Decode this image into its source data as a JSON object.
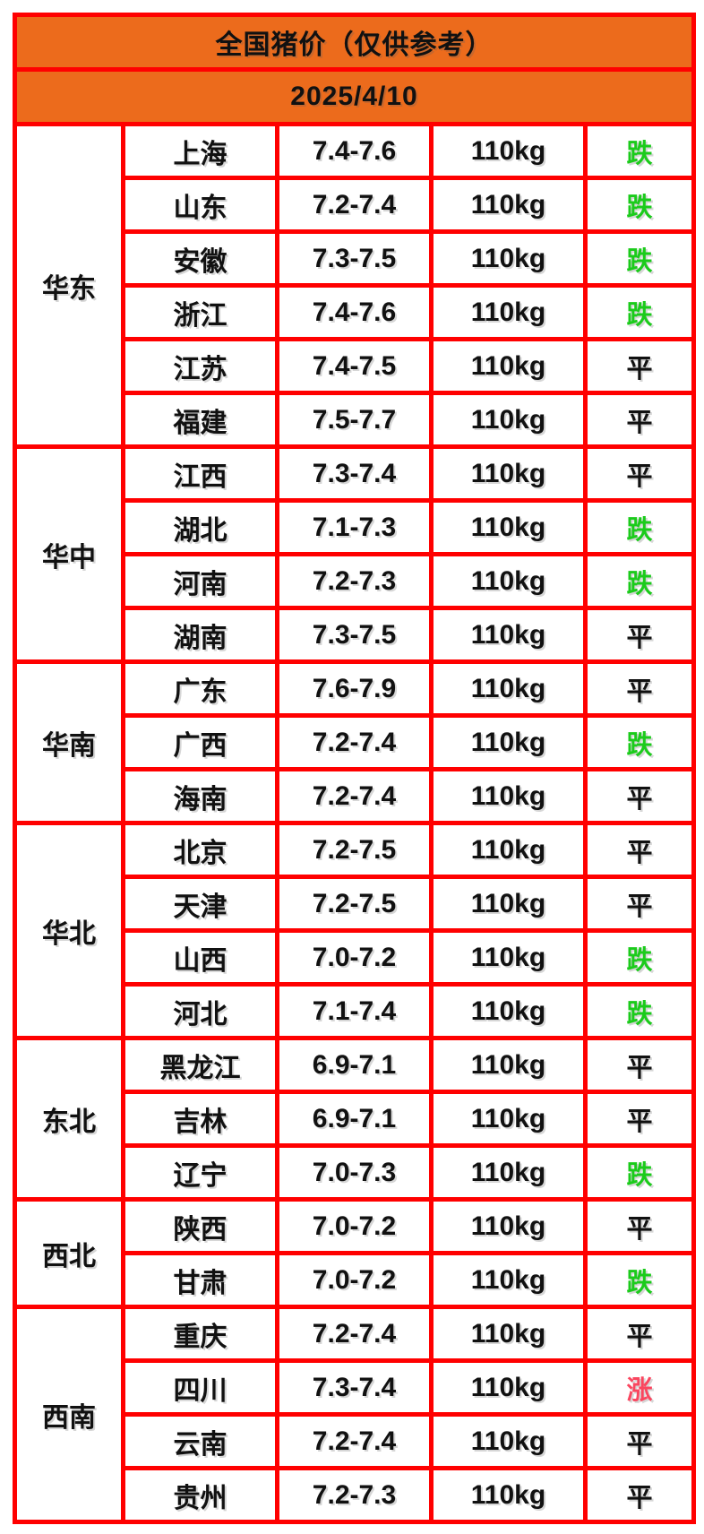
{
  "header": {
    "title": "全国猪价（仅供参考）",
    "date": "2025/4/10"
  },
  "colors": {
    "header_orange": "#EC6B1C",
    "border_red": "#FF0000",
    "status_down_green": "#1BCB1B",
    "status_up_red": "#FA465F",
    "status_flat_black": "#111111"
  },
  "chart_data": {
    "type": "table",
    "title": "全国猪价（仅供参考）",
    "date": "2025/4/10",
    "columns": [
      "region",
      "province",
      "price_range_yuan_per_jin",
      "weight",
      "trend"
    ],
    "regions": [
      {
        "name": "华东",
        "rows": [
          {
            "province": "上海",
            "price": "7.4-7.6",
            "weight": "110kg",
            "status": "跌"
          },
          {
            "province": "山东",
            "price": "7.2-7.4",
            "weight": "110kg",
            "status": "跌"
          },
          {
            "province": "安徽",
            "price": "7.3-7.5",
            "weight": "110kg",
            "status": "跌"
          },
          {
            "province": "浙江",
            "price": "7.4-7.6",
            "weight": "110kg",
            "status": "跌"
          },
          {
            "province": "江苏",
            "price": "7.4-7.5",
            "weight": "110kg",
            "status": "平"
          },
          {
            "province": "福建",
            "price": "7.5-7.7",
            "weight": "110kg",
            "status": "平"
          }
        ]
      },
      {
        "name": "华中",
        "rows": [
          {
            "province": "江西",
            "price": "7.3-7.4",
            "weight": "110kg",
            "status": "平"
          },
          {
            "province": "湖北",
            "price": "7.1-7.3",
            "weight": "110kg",
            "status": "跌"
          },
          {
            "province": "河南",
            "price": "7.2-7.3",
            "weight": "110kg",
            "status": "跌"
          },
          {
            "province": "湖南",
            "price": "7.3-7.5",
            "weight": "110kg",
            "status": "平"
          }
        ]
      },
      {
        "name": "华南",
        "rows": [
          {
            "province": "广东",
            "price": "7.6-7.9",
            "weight": "110kg",
            "status": "平"
          },
          {
            "province": "广西",
            "price": "7.2-7.4",
            "weight": "110kg",
            "status": "跌"
          },
          {
            "province": "海南",
            "price": "7.2-7.4",
            "weight": "110kg",
            "status": "平"
          }
        ]
      },
      {
        "name": "华北",
        "rows": [
          {
            "province": "北京",
            "price": "7.2-7.5",
            "weight": "110kg",
            "status": "平"
          },
          {
            "province": "天津",
            "price": "7.2-7.5",
            "weight": "110kg",
            "status": "平"
          },
          {
            "province": "山西",
            "price": "7.0-7.2",
            "weight": "110kg",
            "status": "跌"
          },
          {
            "province": "河北",
            "price": "7.1-7.4",
            "weight": "110kg",
            "status": "跌"
          }
        ]
      },
      {
        "name": "东北",
        "rows": [
          {
            "province": "黑龙江",
            "price": "6.9-7.1",
            "weight": "110kg",
            "status": "平"
          },
          {
            "province": "吉林",
            "price": "6.9-7.1",
            "weight": "110kg",
            "status": "平"
          },
          {
            "province": "辽宁",
            "price": "7.0-7.3",
            "weight": "110kg",
            "status": "跌"
          }
        ]
      },
      {
        "name": "西北",
        "rows": [
          {
            "province": "陕西",
            "price": "7.0-7.2",
            "weight": "110kg",
            "status": "平"
          },
          {
            "province": "甘肃",
            "price": "7.0-7.2",
            "weight": "110kg",
            "status": "跌"
          }
        ]
      },
      {
        "name": "西南",
        "rows": [
          {
            "province": "重庆",
            "price": "7.2-7.4",
            "weight": "110kg",
            "status": "平"
          },
          {
            "province": "四川",
            "price": "7.3-7.4",
            "weight": "110kg",
            "status": "涨"
          },
          {
            "province": "云南",
            "price": "7.2-7.4",
            "weight": "110kg",
            "status": "平"
          },
          {
            "province": "贵州",
            "price": "7.2-7.3",
            "weight": "110kg",
            "status": "平"
          }
        ]
      }
    ]
  }
}
